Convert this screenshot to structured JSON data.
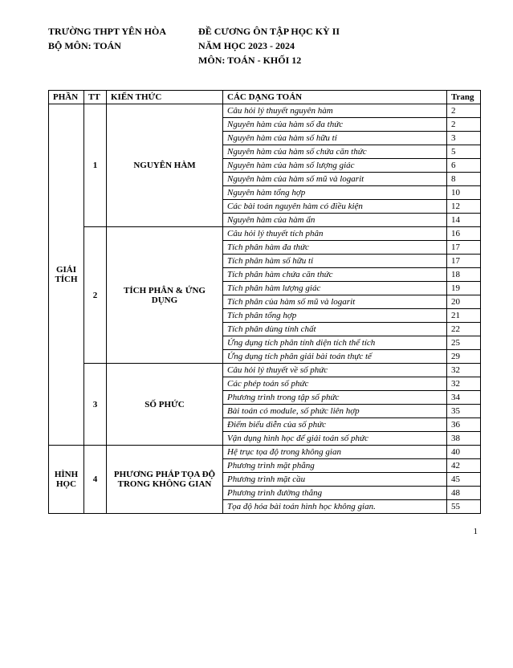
{
  "header": {
    "left_line1": "TRƯỜNG THPT YÊN HÒA",
    "left_line2": "BỘ MÔN: TOÁN",
    "right_line1": "ĐỀ CƯƠNG ÔN TẬP HỌC KỲ II",
    "right_line2": "NĂM HỌC 2023 - 2024",
    "right_line3": "MÔN: TOÁN - KHỐI 12"
  },
  "table": {
    "columns": {
      "phan": "PHẦN",
      "tt": "TT",
      "kien_thuc": "KIẾN THỨC",
      "dang": "CÁC DẠNG TOÁN",
      "trang": "Trang"
    },
    "sections": [
      {
        "phan": "GIẢI TÍCH",
        "chapters": [
          {
            "tt": "1",
            "kien_thuc": "NGUYÊN HÀM",
            "items": [
              {
                "dang": "Câu hỏi lý thuyết nguyên hàm",
                "trang": "2"
              },
              {
                "dang": "Nguyên hàm của hàm số đa thức",
                "trang": "2"
              },
              {
                "dang": "Nguyên hàm của hàm số hữu tỉ",
                "trang": "3"
              },
              {
                "dang": "Nguyên hàm của hàm số chứa căn thức",
                "trang": "5"
              },
              {
                "dang": "Nguyên hàm của hàm số lượng giác",
                "trang": "6"
              },
              {
                "dang": "Nguyên hàm của hàm số mũ và logarit",
                "trang": "8"
              },
              {
                "dang": "Nguyên hàm tổng hợp",
                "trang": "10"
              },
              {
                "dang": "Các bài toán nguyên hàm có điều kiện",
                "trang": "12"
              },
              {
                "dang": "Nguyên hàm của hàm ẩn",
                "trang": "14"
              }
            ]
          },
          {
            "tt": "2",
            "kien_thuc": "TÍCH PHÂN & ỨNG DỤNG",
            "items": [
              {
                "dang": "Câu hỏi lý thuyết tích phân",
                "trang": "16"
              },
              {
                "dang": "Tích phân hàm đa thức",
                "trang": "17"
              },
              {
                "dang": "Tích phân hàm số hữu tỉ",
                "trang": "17"
              },
              {
                "dang": "Tích phân hàm chứa căn thức",
                "trang": "18"
              },
              {
                "dang": "Tích phân hàm lượng giác",
                "trang": "19"
              },
              {
                "dang": "Tích phân của hàm số mũ và logarit",
                "trang": "20"
              },
              {
                "dang": "Tích phân tổng hợp",
                "trang": "21"
              },
              {
                "dang": "Tích phân dùng tính chất",
                "trang": "22"
              },
              {
                "dang": "Ứng dụng tích phân tính diện tích thể tích",
                "trang": "25"
              },
              {
                "dang": "Ứng dụng tích phân giải bài toán thực tế",
                "trang": "29"
              }
            ]
          },
          {
            "tt": "3",
            "kien_thuc": "SỐ PHỨC",
            "items": [
              {
                "dang": "Câu hỏi lý thuyết về số phức",
                "trang": "32"
              },
              {
                "dang": "Các phép toán số phức",
                "trang": "32"
              },
              {
                "dang": "Phương trình trong tập số phức",
                "trang": "34"
              },
              {
                "dang": "Bài toán có module, số phức liên hợp",
                "trang": "35"
              },
              {
                "dang": "Điểm biểu diễn của số phức",
                "trang": "36"
              },
              {
                "dang": "Vận dụng hình học để giải toán số phức",
                "trang": "38"
              }
            ]
          }
        ]
      },
      {
        "phan": "HÌNH HỌC",
        "chapters": [
          {
            "tt": "4",
            "kien_thuc": "PHƯƠNG PHÁP TỌA ĐỘ TRONG KHÔNG GIAN",
            "items": [
              {
                "dang": "Hệ trục tọa độ trong không gian",
                "trang": "40"
              },
              {
                "dang": "Phương trình mặt phẳng",
                "trang": "42"
              },
              {
                "dang": "Phương trình mặt cầu",
                "trang": "45"
              },
              {
                "dang": "Phương trình đường thẳng",
                "trang": "48"
              },
              {
                "dang": "Tọa độ hóa bài toán hình học không gian.",
                "trang": "55"
              }
            ]
          }
        ]
      }
    ]
  },
  "footer": {
    "page_number": "1"
  }
}
